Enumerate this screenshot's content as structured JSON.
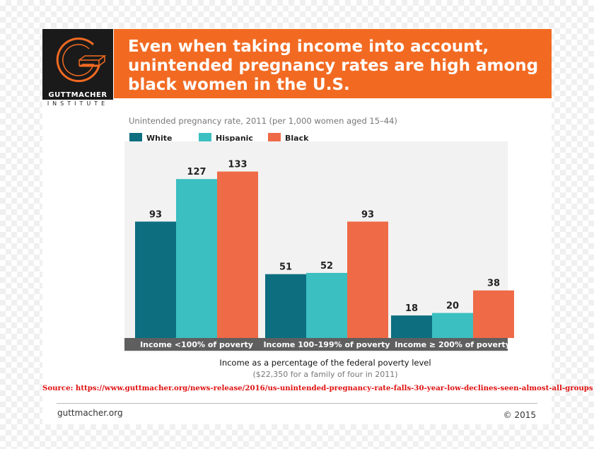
{
  "header": {
    "headline": "Even when taking income into account,\nunintended pregnancy rates are high among\nblack women in the U.S.",
    "logo_name": "GUTTMACHER",
    "logo_sub": "INSTITUTE"
  },
  "colors": {
    "header_bg": "#f26a22",
    "white_series": "#0d6e80",
    "hispanic_series": "#3bbfc1",
    "black_series": "#ef6a47",
    "category_band": "#5f5f5f",
    "source_text": "#e01010"
  },
  "chart_data": {
    "type": "bar",
    "title": "Unintended pregnancy rate, 2011 (per 1,000 women aged 15–44)",
    "categories": [
      "Income <100% of poverty",
      "Income 100–199% of poverty",
      "Income ≥ 200% of poverty"
    ],
    "series": [
      {
        "name": "White",
        "values": [
          93,
          51,
          18
        ],
        "color": "#0d6e80"
      },
      {
        "name": "Hispanic",
        "values": [
          127,
          52,
          20
        ],
        "color": "#3bbfc1"
      },
      {
        "name": "Black",
        "values": [
          133,
          93,
          38
        ],
        "color": "#ef6a47"
      }
    ],
    "ylim": [
      0,
      140
    ],
    "xlabel": "Income as a percentage of the federal poverty level",
    "xlabel_note": "($22,350 for a family of four in 2011)",
    "legend_position": "top-left",
    "grid": false
  },
  "footer": {
    "source": "Source: https://www.guttmacher.org/news-release/2016/us-unintended-pregnancy-rate-falls-30-year-low-declines-seen-almost-all-groups",
    "website": "guttmacher.org",
    "copyright": "© 2015"
  }
}
